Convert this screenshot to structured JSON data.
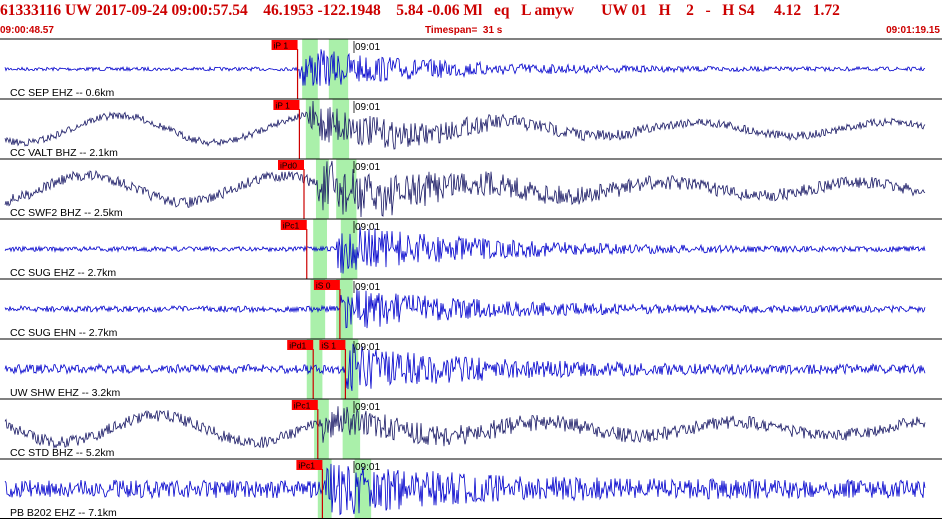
{
  "header": {
    "title": "61333116 UW 2017-09-24 09:00:57.54    46.1953 -122.1948    5.84 -0.06 Ml   eq   L amyw       UW 01   H    2   -   H S4     4.12   1.72",
    "start_time": "09:00:48.57",
    "timespan": "Timespan=  31 s",
    "end_time": "09:01:19.15"
  },
  "colors": {
    "header_text": "#cc0000",
    "pick_flag": "#ff0000",
    "pick_line": "#cc0000",
    "window": "#aaf0aa",
    "trace_blue": "#0000cc",
    "trace_dark": "#1a1a66",
    "divider": "#000000"
  },
  "traces": [
    {
      "label": "CC SEP EHZ -- 0.6km",
      "time": "09:01",
      "color": "blue",
      "picks": [
        {
          "label": "iP 1",
          "t": 0.318
        }
      ],
      "windows": [
        [
          0.323,
          0.34
        ],
        [
          0.352,
          0.373
        ]
      ],
      "onset": 0.32,
      "amp": 0.32,
      "bg": 0.06
    },
    {
      "label": "CC VALT BHZ -- 2.1km",
      "time": "09:01",
      "color": "dark",
      "picks": [
        {
          "label": "iP 1",
          "t": 0.32
        }
      ],
      "windows": [
        [
          0.327,
          0.342
        ],
        [
          0.356,
          0.374
        ]
      ],
      "onset": 0.33,
      "amp": 0.3,
      "bg": 0.12
    },
    {
      "label": "CC SWF2 BHZ -- 2.5km",
      "time": "09:01",
      "color": "dark",
      "picks": [
        {
          "label": "iPd0",
          "t": 0.325
        }
      ],
      "windows": [
        [
          0.338,
          0.352
        ],
        [
          0.36,
          0.382
        ]
      ],
      "onset": 0.34,
      "amp": 0.4,
      "bg": 0.18
    },
    {
      "label": "CC SUG EHZ -- 2.7km",
      "time": "09:01",
      "color": "blue",
      "picks": [
        {
          "label": "iPc1",
          "t": 0.328
        }
      ],
      "windows": [
        [
          0.335,
          0.35
        ],
        [
          0.365,
          0.383
        ]
      ],
      "onset": 0.36,
      "amp": 0.38,
      "bg": 0.08
    },
    {
      "label": "CC SUG EHN -- 2.7km",
      "time": "09:01",
      "color": "blue",
      "picks": [
        {
          "label": "iS 0",
          "t": 0.364
        }
      ],
      "windows": [
        [
          0.332,
          0.348
        ],
        [
          0.36,
          0.378
        ]
      ],
      "onset": 0.365,
      "amp": 0.3,
      "bg": 0.1
    },
    {
      "label": "UW SHW EHZ -- 3.2km",
      "time": "09:01",
      "color": "blue",
      "picks": [
        {
          "label": "iPd1",
          "t": 0.335
        },
        {
          "label": "iS 1",
          "t": 0.37
        }
      ],
      "windows": [
        [
          0.328,
          0.345
        ],
        [
          0.365,
          0.384
        ]
      ],
      "onset": 0.37,
      "amp": 0.32,
      "bg": 0.15
    },
    {
      "label": "CC STD BHZ -- 5.2km",
      "time": "09:01",
      "color": "dark",
      "picks": [
        {
          "label": "iPc1",
          "t": 0.34
        }
      ],
      "windows": [
        [
          0.336,
          0.352
        ],
        [
          0.367,
          0.386
        ]
      ],
      "onset": 0.345,
      "amp": 0.18,
      "bg": 0.2
    },
    {
      "label": "PB B202 EHZ -- 7.1km",
      "time": "09:01",
      "color": "blue",
      "picks": [
        {
          "label": "iPc1",
          "t": 0.345
        }
      ],
      "windows": [
        [
          0.34,
          0.355
        ],
        [
          0.38,
          0.398
        ]
      ],
      "onset": 0.35,
      "amp": 0.3,
      "bg": 0.3
    }
  ]
}
